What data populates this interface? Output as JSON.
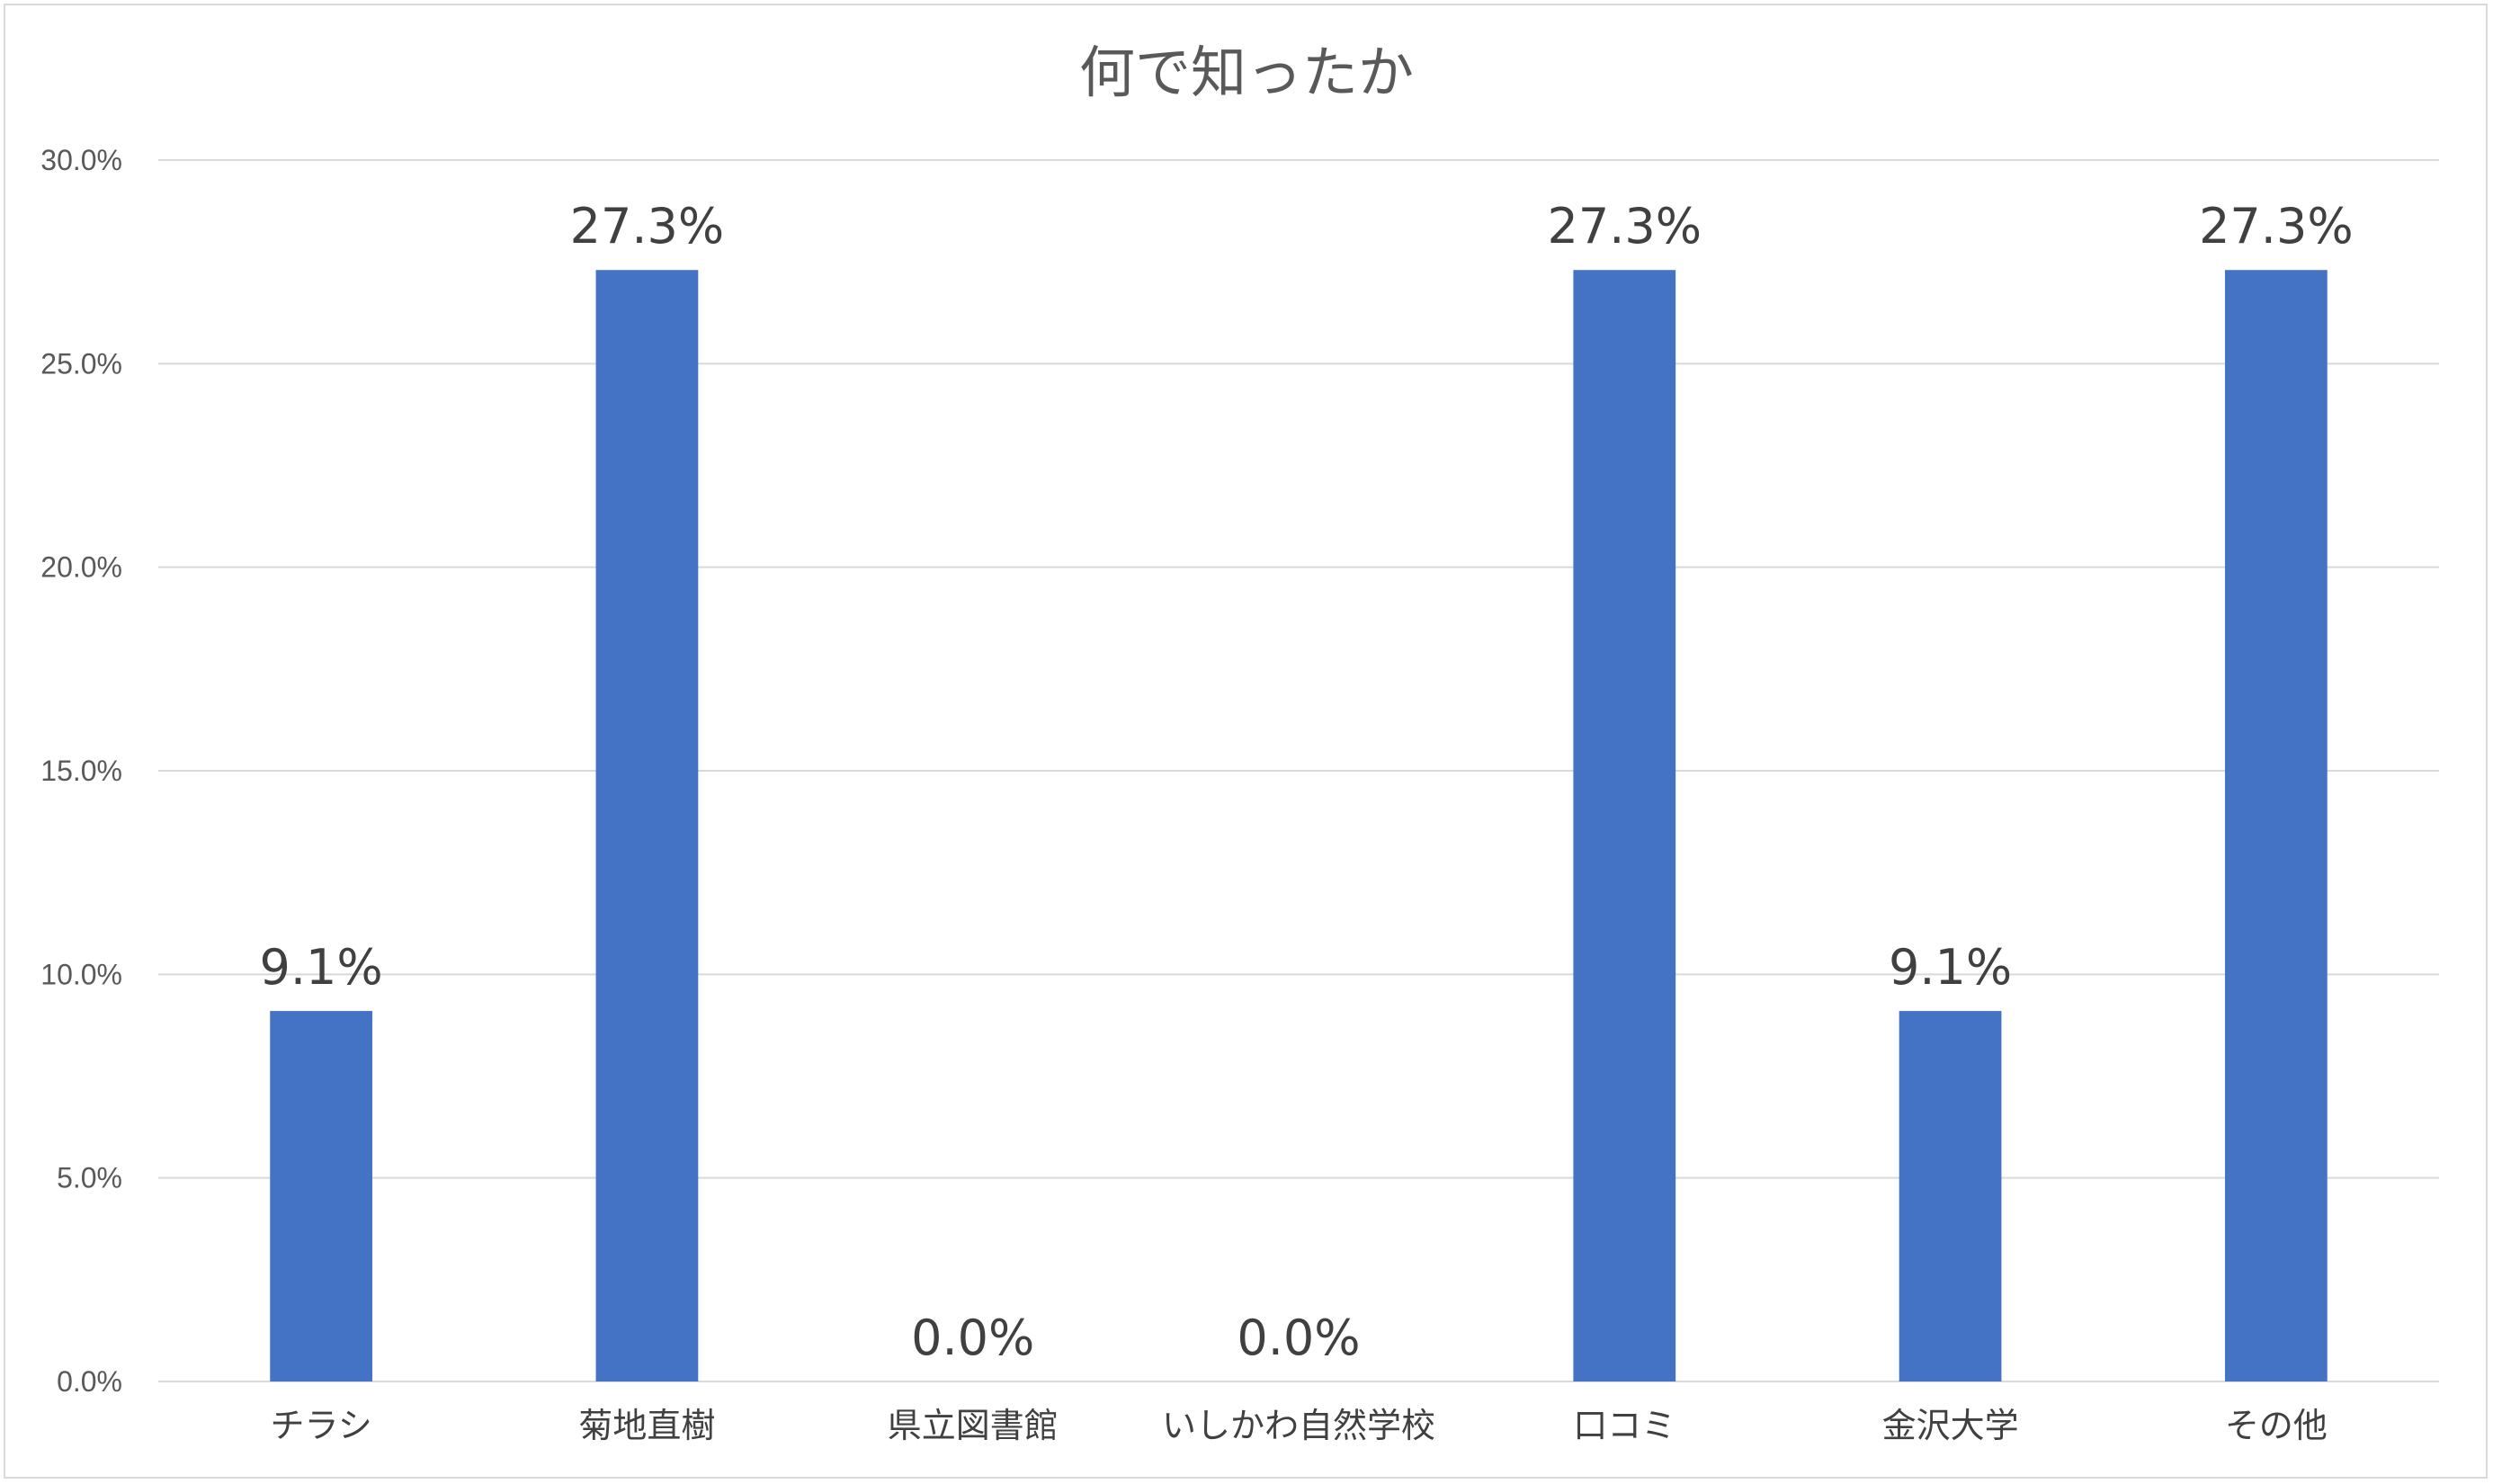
{
  "chart_data": {
    "type": "bar",
    "title": "何で知ったか",
    "xlabel": "",
    "ylabel": "",
    "categories": [
      "チラシ",
      "菊地直樹",
      "県立図書館",
      "いしかわ自然学校",
      "口コミ",
      "金沢大学",
      "その他"
    ],
    "values": [
      9.1,
      27.3,
      0.0,
      0.0,
      27.3,
      9.1,
      27.3
    ],
    "data_labels": [
      "9.1%",
      "27.3%",
      "0.0%",
      "0.0%",
      "27.3%",
      "9.1%",
      "27.3%"
    ],
    "ylim": [
      0,
      30
    ],
    "yticks": [
      0,
      5,
      10,
      15,
      20,
      25,
      30
    ],
    "ytick_labels": [
      "0.0%",
      "5.0%",
      "10.0%",
      "15.0%",
      "20.0%",
      "25.0%",
      "30.0%"
    ],
    "grid": true,
    "legend": "none",
    "bar_color": "#4472c4",
    "grid_color": "#d9d9d9",
    "text_color": "#595959"
  }
}
